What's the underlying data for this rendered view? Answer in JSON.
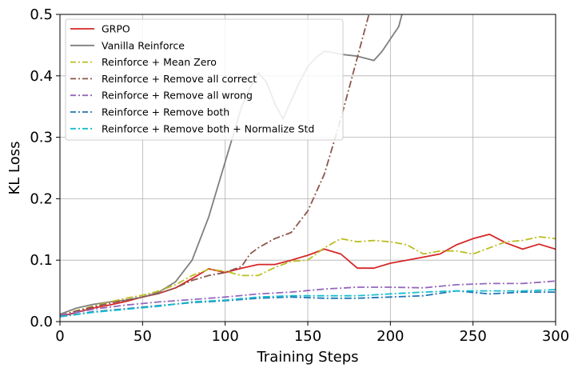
{
  "chart_data": {
    "type": "line",
    "xlabel": "Training Steps",
    "ylabel": "KL Loss",
    "xlim": [
      0,
      300
    ],
    "ylim": [
      0,
      0.5
    ],
    "xticks": [
      "0",
      "50",
      "100",
      "150",
      "200",
      "250",
      "300"
    ],
    "yticks": [
      "0.0",
      "0.1",
      "0.2",
      "0.3",
      "0.4",
      "0.5"
    ],
    "grid": true,
    "legend_position": "top-left",
    "series": [
      {
        "name": "GRPO",
        "color": "#d62728",
        "dash": "solid",
        "x": [
          0,
          10,
          20,
          30,
          40,
          50,
          60,
          70,
          80,
          90,
          100,
          110,
          120,
          130,
          140,
          150,
          160,
          170,
          180,
          190,
          200,
          210,
          220,
          230,
          240,
          250,
          260,
          270,
          280,
          290,
          300
        ],
        "y": [
          0.008,
          0.015,
          0.022,
          0.027,
          0.033,
          0.04,
          0.046,
          0.055,
          0.07,
          0.086,
          0.08,
          0.087,
          0.093,
          0.093,
          0.1,
          0.108,
          0.118,
          0.11,
          0.087,
          0.087,
          0.095,
          0.1,
          0.105,
          0.11,
          0.125,
          0.135,
          0.142,
          0.128,
          0.118,
          0.126,
          0.118
        ]
      },
      {
        "name": "Vanilla Reinforce",
        "color": "#7f7f7f",
        "dash": "solid",
        "x": [
          0,
          10,
          20,
          30,
          40,
          50,
          60,
          70,
          80,
          90,
          100,
          110,
          115,
          120,
          125,
          130,
          135,
          140,
          145,
          150,
          155,
          160,
          165,
          170,
          180,
          190,
          195,
          200,
          205,
          207
        ],
        "y": [
          0.012,
          0.022,
          0.028,
          0.032,
          0.035,
          0.04,
          0.048,
          0.065,
          0.1,
          0.17,
          0.26,
          0.35,
          0.38,
          0.405,
          0.39,
          0.355,
          0.33,
          0.36,
          0.39,
          0.415,
          0.43,
          0.44,
          0.438,
          0.435,
          0.432,
          0.425,
          0.44,
          0.46,
          0.48,
          0.5
        ]
      },
      {
        "name": "Reinforce + Mean Zero",
        "color": "#bcbd22",
        "dash": "dashdot",
        "x": [
          0,
          10,
          20,
          30,
          40,
          50,
          60,
          70,
          80,
          90,
          100,
          110,
          120,
          130,
          140,
          150,
          160,
          170,
          180,
          190,
          200,
          210,
          220,
          230,
          240,
          250,
          260,
          270,
          280,
          290,
          300
        ],
        "y": [
          0.01,
          0.018,
          0.025,
          0.032,
          0.038,
          0.043,
          0.05,
          0.06,
          0.075,
          0.085,
          0.082,
          0.075,
          0.075,
          0.088,
          0.098,
          0.1,
          0.12,
          0.135,
          0.13,
          0.132,
          0.13,
          0.125,
          0.11,
          0.115,
          0.115,
          0.11,
          0.12,
          0.13,
          0.132,
          0.138,
          0.135
        ]
      },
      {
        "name": "Reinforce + Remove all correct",
        "color": "#8c564b",
        "dash": "dashdot",
        "x": [
          0,
          10,
          20,
          30,
          40,
          50,
          60,
          70,
          80,
          90,
          100,
          110,
          115,
          120,
          130,
          140,
          150,
          160,
          170,
          175,
          180,
          185,
          187
        ],
        "y": [
          0.01,
          0.017,
          0.024,
          0.03,
          0.035,
          0.04,
          0.046,
          0.055,
          0.067,
          0.075,
          0.08,
          0.09,
          0.11,
          0.12,
          0.135,
          0.145,
          0.18,
          0.24,
          0.33,
          0.38,
          0.43,
          0.48,
          0.5
        ]
      },
      {
        "name": "Reinforce + Remove all wrong",
        "color": "#9467bd",
        "dash": "dashdot",
        "x": [
          0,
          20,
          40,
          60,
          80,
          100,
          120,
          140,
          160,
          180,
          200,
          220,
          240,
          260,
          280,
          300
        ],
        "y": [
          0.01,
          0.02,
          0.027,
          0.032,
          0.036,
          0.04,
          0.045,
          0.048,
          0.053,
          0.056,
          0.056,
          0.055,
          0.06,
          0.062,
          0.062,
          0.066
        ]
      },
      {
        "name": "Reinforce + Remove both",
        "color": "#1f77b4",
        "dash": "dashdot",
        "x": [
          0,
          20,
          40,
          60,
          80,
          100,
          120,
          140,
          160,
          180,
          200,
          220,
          240,
          260,
          280,
          300
        ],
        "y": [
          0.008,
          0.016,
          0.021,
          0.026,
          0.031,
          0.034,
          0.038,
          0.04,
          0.038,
          0.038,
          0.04,
          0.042,
          0.05,
          0.045,
          0.048,
          0.048
        ]
      },
      {
        "name": "Reinforce + Remove both + Normalize Std",
        "color": "#17becf",
        "dash": "dashdot",
        "x": [
          0,
          20,
          40,
          60,
          80,
          100,
          120,
          140,
          160,
          180,
          200,
          220,
          240,
          260,
          280,
          300
        ],
        "y": [
          0.008,
          0.015,
          0.02,
          0.025,
          0.032,
          0.035,
          0.04,
          0.042,
          0.042,
          0.042,
          0.045,
          0.048,
          0.05,
          0.05,
          0.05,
          0.052
        ]
      }
    ]
  }
}
